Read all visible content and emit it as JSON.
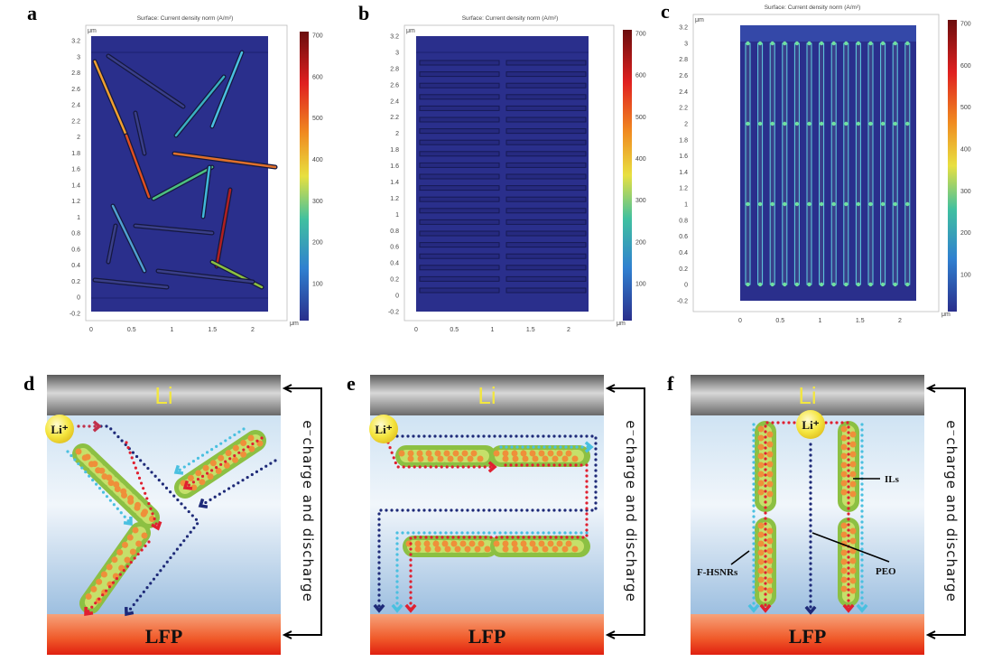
{
  "plots": [
    {
      "label": "a",
      "title": "Surface: Current density norm (A/m²)",
      "unit": "μm",
      "y_ticks": [
        "3.2",
        "3",
        "2.8",
        "2.6",
        "2.4",
        "2.2",
        "2",
        "1.8",
        "1.6",
        "1.4",
        "1.2",
        "1",
        "0.8",
        "0.6",
        "0.4",
        "0.2",
        "0",
        "-0.2"
      ],
      "x_ticks": [
        "0",
        "0.5",
        "1",
        "1.5",
        "2"
      ],
      "colorbar_ticks": [
        "700",
        "600",
        "500",
        "400",
        "300",
        "200",
        "100"
      ]
    },
    {
      "label": "b",
      "title": "Surface: Current density norm (A/m²)",
      "unit": "μm",
      "y_ticks": [
        "3.2",
        "3",
        "2.8",
        "2.6",
        "2.4",
        "2.2",
        "2",
        "1.8",
        "1.6",
        "1.4",
        "1.2",
        "1",
        "0.8",
        "0.6",
        "0.4",
        "0.2",
        "0",
        "-0.2"
      ],
      "x_ticks": [
        "0",
        "0.5",
        "1",
        "1.5",
        "2"
      ],
      "colorbar_ticks": [
        "700",
        "600",
        "500",
        "400",
        "300",
        "200",
        "100"
      ]
    },
    {
      "label": "c",
      "title": "Surface: Current density norm (A/m²)",
      "unit": "μm",
      "y_ticks": [
        "3.2",
        "3",
        "2.8",
        "2.6",
        "2.4",
        "2.2",
        "2",
        "1.8",
        "1.6",
        "1.4",
        "1.2",
        "1",
        "0.8",
        "0.6",
        "0.4",
        "0.2",
        "0",
        "-0.2"
      ],
      "x_ticks": [
        "0",
        "0.5",
        "1",
        "1.5",
        "2"
      ],
      "colorbar_ticks": [
        "700",
        "600",
        "500",
        "400",
        "300",
        "200",
        "100"
      ]
    }
  ],
  "colorbar_colors": [
    "#6b0d0d",
    "#e02020",
    "#f08a20",
    "#e8e040",
    "#40c0a0",
    "#3080d0",
    "#2a2f8c"
  ],
  "diagrams": [
    {
      "label": "d",
      "anode": "Li",
      "ion": "Li⁺",
      "cathode": "LFP",
      "side_text": "e⁻charge and discharge"
    },
    {
      "label": "e",
      "anode": "Li",
      "ion": "Li⁺",
      "cathode": "LFP",
      "side_text": "e⁻charge and discharge"
    },
    {
      "label": "f",
      "anode": "Li",
      "ion": "Li⁺",
      "cathode": "LFP",
      "side_text": "e⁻charge and discharge",
      "annotations": {
        "ils": "ILs",
        "fhsnrs": "F-HSNRs",
        "peo": "PEO"
      }
    }
  ]
}
